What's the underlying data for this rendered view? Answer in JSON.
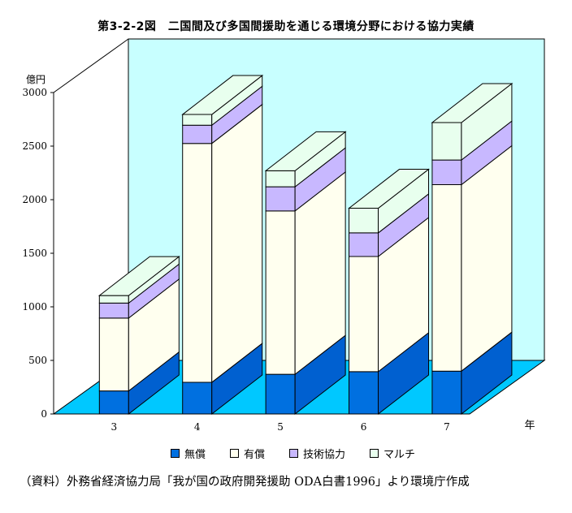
{
  "title": "第3-2-2図　二国間及び多国間援助を通じる環境分野における協力実績",
  "source": "（資料）外務省経済協力局「我が国の政府開発援助 ODA白書1996」より環境庁作成",
  "colors": {
    "floor": "#00c8ff",
    "back_wall": "#c8ffff",
    "grant": "#0070e0",
    "loan": "#ffffef",
    "tech": "#c8b8ff",
    "multi": "#e8ffee"
  },
  "chart_data": {
    "type": "bar",
    "stacked": true,
    "three_d": true,
    "ylabel": "億円",
    "xlabel": "年",
    "ylim": [
      0,
      3000
    ],
    "yticks": [
      "0",
      "500",
      "1000",
      "1500",
      "2000",
      "2500",
      "3000"
    ],
    "categories": [
      "3",
      "4",
      "5",
      "6",
      "7"
    ],
    "series": [
      {
        "name": "無償",
        "color": "#0070e0",
        "values": [
          215,
          295,
          370,
          395,
          400
        ]
      },
      {
        "name": "有償",
        "color": "#ffffef",
        "values": [
          680,
          2230,
          1525,
          1075,
          1740
        ]
      },
      {
        "name": "技術協力",
        "color": "#c8b8ff",
        "values": [
          140,
          170,
          225,
          220,
          230
        ]
      },
      {
        "name": "マルチ",
        "color": "#e8ffee",
        "values": [
          70,
          100,
          150,
          230,
          350
        ]
      }
    ],
    "legend_position": "bottom",
    "grid": false
  }
}
